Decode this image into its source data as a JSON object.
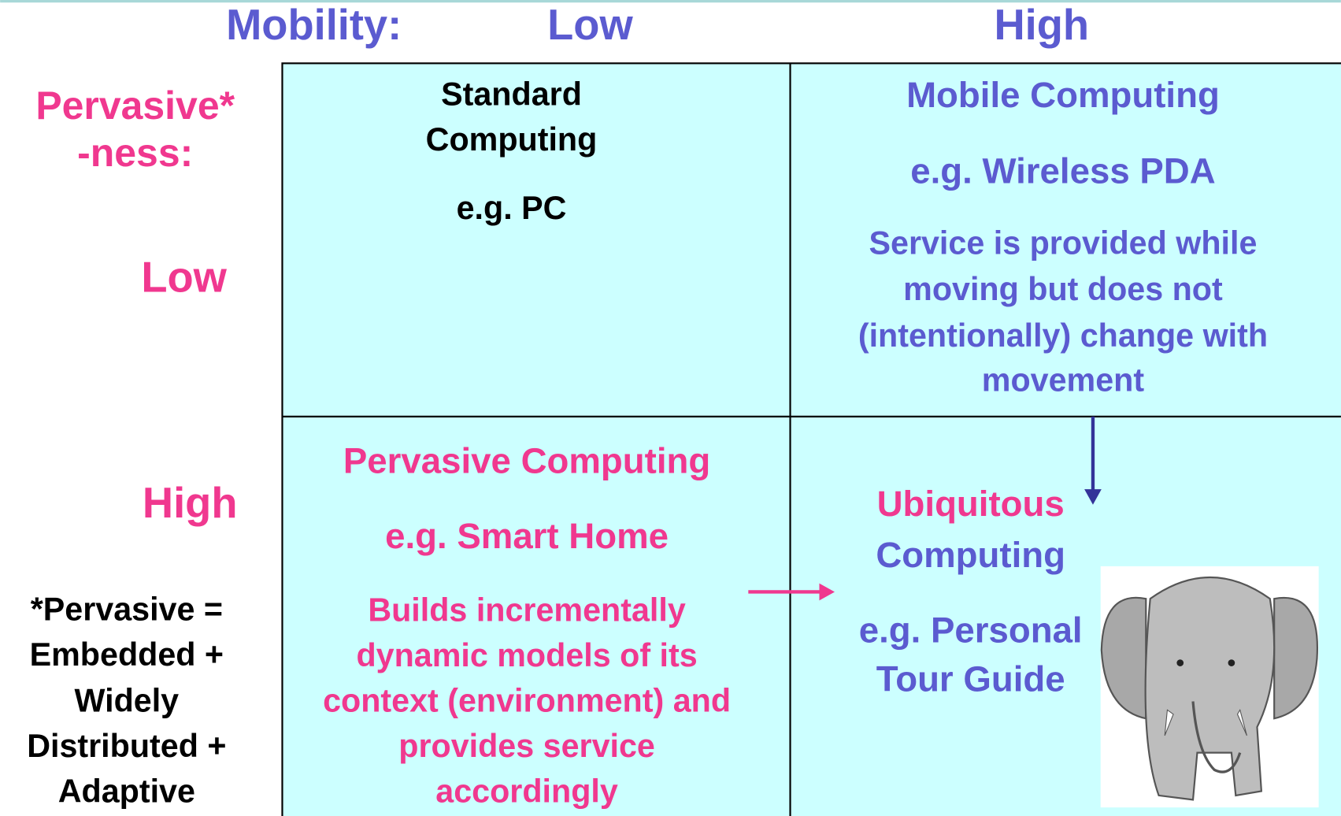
{
  "header": {
    "axis_label": "Mobility:",
    "low": "Low",
    "high": "High"
  },
  "row_axis": {
    "label_lines": [
      "Pervasive*",
      "-ness:"
    ],
    "low": "Low",
    "high": "High"
  },
  "footnote": [
    "*Pervasive =",
    "Embedded +",
    "Widely",
    "Distributed +",
    "Adaptive"
  ],
  "cells": [
    {
      "title": [
        "Standard",
        "Computing"
      ],
      "example": [
        "e.g. PC"
      ]
    },
    {
      "title": [
        "Mobile Computing"
      ],
      "example": [
        "e.g. Wireless PDA"
      ],
      "description": [
        "Service is provided while",
        "moving but does not",
        "(intentionally) change with",
        "movement"
      ]
    },
    {
      "title": [
        "Pervasive Computing"
      ],
      "example": [
        "e.g. Smart Home"
      ],
      "description": [
        "Builds incrementally",
        "dynamic models of its",
        "context (environment) and",
        "provides service",
        "accordingly"
      ]
    },
    {
      "title": [
        "Ubiquitous",
        "Computing"
      ],
      "example": [
        "e.g. Personal",
        "Tour Guide"
      ]
    }
  ]
}
